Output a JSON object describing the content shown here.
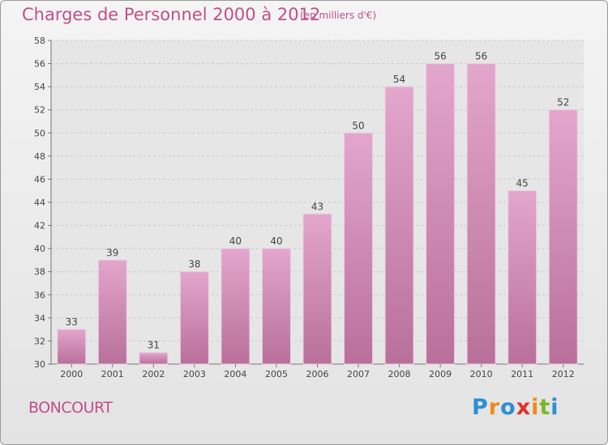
{
  "title": "Charges de Personnel 2000 à 2012",
  "subtitle": "(en milliers d'€)",
  "commune": "BONCOURT",
  "logo": {
    "text": "Proxiti",
    "letters": [
      "P",
      "r",
      "o",
      "x",
      "i",
      "t",
      "i"
    ],
    "colors": [
      "#2a8fd4",
      "#f08a1c",
      "#2a8fd4",
      "#e0302a",
      "#f08a1c",
      "#7ab82a",
      "#2a8fd4"
    ]
  },
  "colors": {
    "accent": "#c0508a",
    "bar_top": "#e3a6cc",
    "bar_bottom": "#b8709a",
    "bar_edge": "#ecd0e0"
  },
  "chart_data": {
    "type": "bar",
    "categories": [
      "2000",
      "2001",
      "2002",
      "2003",
      "2004",
      "2005",
      "2006",
      "2007",
      "2008",
      "2009",
      "2010",
      "2011",
      "2012"
    ],
    "values": [
      33,
      39,
      31,
      38,
      40,
      40,
      43,
      50,
      54,
      56,
      56,
      45,
      52
    ],
    "ylim": [
      30,
      58
    ],
    "yticks": [
      30,
      32,
      34,
      36,
      38,
      40,
      42,
      44,
      46,
      48,
      50,
      52,
      54,
      56,
      58
    ],
    "grid": true
  }
}
